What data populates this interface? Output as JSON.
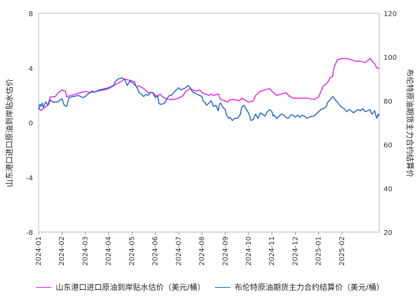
{
  "chart_data": {
    "type": "line",
    "title": "",
    "xlabel": "",
    "ylabel_left": "山东港口进口原油到岸贴水估价",
    "ylabel_right": "布伦特原油期货主力合约结算价",
    "ylim_left": [
      -8,
      8
    ],
    "ylim_right": [
      20,
      120
    ],
    "yticks_left": [
      "8",
      "4",
      "0",
      "-4",
      "-8"
    ],
    "yticks_right": [
      "120",
      "100",
      "80",
      "60",
      "40",
      "20"
    ],
    "x_ticks": [
      "2024-01",
      "2024-02",
      "2024-03",
      "2024-04",
      "2024-05",
      "2024-06",
      "2024-07",
      "2024-08",
      "2024-09",
      "2024-10",
      "2024-11",
      "2024-12",
      "2025-01",
      "2025-02"
    ],
    "x_range_months": [
      0,
      14.6
    ],
    "grid": false,
    "legend_position": "bottom",
    "series": [
      {
        "name": "山东港口进口原油到岸贴水估价（美元/桶）",
        "axis": "left",
        "color": "#e61ee6",
        "points": [
          [
            0.0,
            1.1
          ],
          [
            0.1,
            0.9
          ],
          [
            0.25,
            1.1
          ],
          [
            0.4,
            1.3
          ],
          [
            0.5,
            1.9
          ],
          [
            0.7,
            1.9
          ],
          [
            0.85,
            2.2
          ],
          [
            1.0,
            2.4
          ],
          [
            1.15,
            2.3
          ],
          [
            1.2,
            1.9
          ],
          [
            1.4,
            2.0
          ],
          [
            1.6,
            2.1
          ],
          [
            1.8,
            2.2
          ],
          [
            2.0,
            2.3
          ],
          [
            2.2,
            2.2
          ],
          [
            2.5,
            2.3
          ],
          [
            2.8,
            2.4
          ],
          [
            3.0,
            2.5
          ],
          [
            3.2,
            2.7
          ],
          [
            3.5,
            3.0
          ],
          [
            3.7,
            3.2
          ],
          [
            3.9,
            3.1
          ],
          [
            4.1,
            3.0
          ],
          [
            4.2,
            2.6
          ],
          [
            4.3,
            2.7
          ],
          [
            4.5,
            2.5
          ],
          [
            4.7,
            2.2
          ],
          [
            4.9,
            2.2
          ],
          [
            5.0,
            2.0
          ],
          [
            5.1,
            1.9
          ],
          [
            5.2,
            2.1
          ],
          [
            5.3,
            1.9
          ],
          [
            5.4,
            1.8
          ],
          [
            5.6,
            1.7
          ],
          [
            5.8,
            1.7
          ],
          [
            6.0,
            1.8
          ],
          [
            6.2,
            2.0
          ],
          [
            6.3,
            2.3
          ],
          [
            6.5,
            2.5
          ],
          [
            6.7,
            2.3
          ],
          [
            6.9,
            2.4
          ],
          [
            7.0,
            2.2
          ],
          [
            7.3,
            2.0
          ],
          [
            7.4,
            2.1
          ],
          [
            7.5,
            2.0
          ],
          [
            7.7,
            2.1
          ],
          [
            7.8,
            1.7
          ],
          [
            8.0,
            1.6
          ],
          [
            8.1,
            1.5
          ],
          [
            8.2,
            1.7
          ],
          [
            8.4,
            1.7
          ],
          [
            8.6,
            1.6
          ],
          [
            8.7,
            1.8
          ],
          [
            8.8,
            1.7
          ],
          [
            9.0,
            1.5
          ],
          [
            9.2,
            1.6
          ],
          [
            9.3,
            2.0
          ],
          [
            9.5,
            2.3
          ],
          [
            9.7,
            2.4
          ],
          [
            9.9,
            2.5
          ],
          [
            10.0,
            2.3
          ],
          [
            10.2,
            2.0
          ],
          [
            10.4,
            2.1
          ],
          [
            10.6,
            2.2
          ],
          [
            10.7,
            2.0
          ],
          [
            10.9,
            1.8
          ],
          [
            11.2,
            1.8
          ],
          [
            11.5,
            1.8
          ],
          [
            11.8,
            1.7
          ],
          [
            12.0,
            1.9
          ],
          [
            12.1,
            2.3
          ],
          [
            12.2,
            2.7
          ],
          [
            12.3,
            2.8
          ],
          [
            12.4,
            3.0
          ],
          [
            12.5,
            3.3
          ],
          [
            12.6,
            3.4
          ],
          [
            12.65,
            4.0
          ],
          [
            12.8,
            4.6
          ],
          [
            13.0,
            4.7
          ],
          [
            13.2,
            4.7
          ],
          [
            13.4,
            4.6
          ],
          [
            13.6,
            4.5
          ],
          [
            13.8,
            4.5
          ],
          [
            14.0,
            4.4
          ],
          [
            14.2,
            4.7
          ],
          [
            14.3,
            4.5
          ],
          [
            14.4,
            4.3
          ],
          [
            14.5,
            4.0
          ],
          [
            14.6,
            4.0
          ]
        ]
      },
      {
        "name": "布伦特原油期货主力合约结算价（美元/桶）",
        "axis": "right",
        "color": "#1f5fc8",
        "points": [
          [
            0.0,
            76.0
          ],
          [
            0.05,
            78.5
          ],
          [
            0.1,
            77.5
          ],
          [
            0.15,
            79.0
          ],
          [
            0.2,
            77.0
          ],
          [
            0.3,
            79.5
          ],
          [
            0.4,
            78.0
          ],
          [
            0.45,
            79.0
          ],
          [
            0.5,
            80.5
          ],
          [
            0.6,
            79.5
          ],
          [
            0.8,
            79.5
          ],
          [
            1.0,
            81.0
          ],
          [
            1.1,
            78.0
          ],
          [
            1.2,
            77.5
          ],
          [
            1.3,
            81.5
          ],
          [
            1.5,
            82.0
          ],
          [
            1.7,
            82.5
          ],
          [
            1.9,
            81.5
          ],
          [
            2.0,
            82.0
          ],
          [
            2.1,
            83.0
          ],
          [
            2.3,
            84.5
          ],
          [
            2.4,
            84.0
          ],
          [
            2.6,
            85.0
          ],
          [
            2.8,
            85.5
          ],
          [
            3.0,
            86.0
          ],
          [
            3.2,
            87.0
          ],
          [
            3.3,
            89.0
          ],
          [
            3.4,
            90.0
          ],
          [
            3.6,
            90.5
          ],
          [
            3.7,
            89.5
          ],
          [
            3.8,
            87.0
          ],
          [
            3.9,
            89.0
          ],
          [
            4.0,
            88.5
          ],
          [
            4.2,
            86.5
          ],
          [
            4.3,
            84.0
          ],
          [
            4.4,
            83.0
          ],
          [
            4.5,
            82.0
          ],
          [
            4.6,
            83.0
          ],
          [
            4.7,
            82.5
          ],
          [
            4.8,
            84.0
          ],
          [
            4.9,
            83.5
          ],
          [
            5.0,
            81.5
          ],
          [
            5.1,
            82.5
          ],
          [
            5.15,
            79.0
          ],
          [
            5.2,
            78.5
          ],
          [
            5.3,
            78.5
          ],
          [
            5.4,
            79.0
          ],
          [
            5.5,
            81.0
          ],
          [
            5.6,
            82.5
          ],
          [
            5.7,
            82.5
          ],
          [
            5.8,
            84.0
          ],
          [
            6.0,
            86.0
          ],
          [
            6.1,
            85.0
          ],
          [
            6.3,
            86.0
          ],
          [
            6.4,
            87.0
          ],
          [
            6.5,
            86.0
          ],
          [
            6.6,
            84.0
          ],
          [
            6.8,
            83.0
          ],
          [
            7.0,
            82.0
          ],
          [
            7.05,
            80.0
          ],
          [
            7.15,
            79.0
          ],
          [
            7.2,
            78.0
          ],
          [
            7.3,
            79.0
          ],
          [
            7.4,
            80.0
          ],
          [
            7.5,
            77.5
          ],
          [
            7.6,
            78.0
          ],
          [
            7.7,
            75.5
          ],
          [
            7.75,
            78.5
          ],
          [
            7.8,
            79.0
          ],
          [
            7.9,
            77.0
          ],
          [
            8.0,
            76.0
          ],
          [
            8.05,
            73.5
          ],
          [
            8.15,
            72.0
          ],
          [
            8.2,
            72.5
          ],
          [
            8.3,
            71.0
          ],
          [
            8.4,
            72.0
          ],
          [
            8.5,
            72.0
          ],
          [
            8.6,
            73.0
          ],
          [
            8.65,
            74.0
          ],
          [
            8.7,
            77.0
          ],
          [
            8.8,
            78.0
          ],
          [
            8.9,
            76.0
          ],
          [
            9.0,
            74.5
          ],
          [
            9.1,
            71.0
          ],
          [
            9.2,
            71.5
          ],
          [
            9.3,
            74.0
          ],
          [
            9.4,
            72.0
          ],
          [
            9.5,
            74.5
          ],
          [
            9.6,
            74.0
          ],
          [
            9.7,
            73.0
          ],
          [
            9.8,
            75.0
          ],
          [
            9.9,
            76.0
          ],
          [
            10.0,
            75.0
          ],
          [
            10.05,
            73.0
          ],
          [
            10.1,
            73.5
          ],
          [
            10.2,
            72.0
          ],
          [
            10.3,
            73.0
          ],
          [
            10.4,
            74.0
          ],
          [
            10.5,
            73.5
          ],
          [
            10.6,
            72.5
          ],
          [
            10.7,
            72.0
          ],
          [
            10.8,
            73.5
          ],
          [
            10.9,
            73.5
          ],
          [
            11.0,
            72.5
          ],
          [
            11.1,
            73.5
          ],
          [
            11.2,
            72.5
          ],
          [
            11.3,
            73.5
          ],
          [
            11.4,
            73.0
          ],
          [
            11.5,
            72.0
          ],
          [
            11.6,
            72.5
          ],
          [
            11.7,
            73.0
          ],
          [
            11.8,
            73.0
          ],
          [
            11.9,
            74.0
          ],
          [
            12.0,
            75.0
          ],
          [
            12.1,
            76.0
          ],
          [
            12.2,
            76.5
          ],
          [
            12.3,
            77.0
          ],
          [
            12.35,
            78.0
          ],
          [
            12.4,
            79.5
          ],
          [
            12.5,
            80.5
          ],
          [
            12.6,
            82.0
          ],
          [
            12.7,
            80.5
          ],
          [
            12.8,
            79.5
          ],
          [
            12.9,
            78.0
          ],
          [
            13.0,
            77.0
          ],
          [
            13.1,
            76.5
          ],
          [
            13.2,
            75.0
          ],
          [
            13.3,
            76.0
          ],
          [
            13.4,
            75.5
          ],
          [
            13.5,
            74.5
          ],
          [
            13.6,
            75.5
          ],
          [
            13.7,
            76.0
          ],
          [
            13.8,
            75.5
          ],
          [
            13.9,
            76.5
          ],
          [
            14.0,
            75.0
          ],
          [
            14.1,
            75.5
          ],
          [
            14.2,
            76.0
          ],
          [
            14.25,
            74.5
          ],
          [
            14.3,
            74.0
          ],
          [
            14.4,
            75.5
          ],
          [
            14.45,
            73.5
          ],
          [
            14.5,
            72.0
          ],
          [
            14.55,
            74.0
          ],
          [
            14.6,
            73.0
          ]
        ]
      }
    ]
  }
}
